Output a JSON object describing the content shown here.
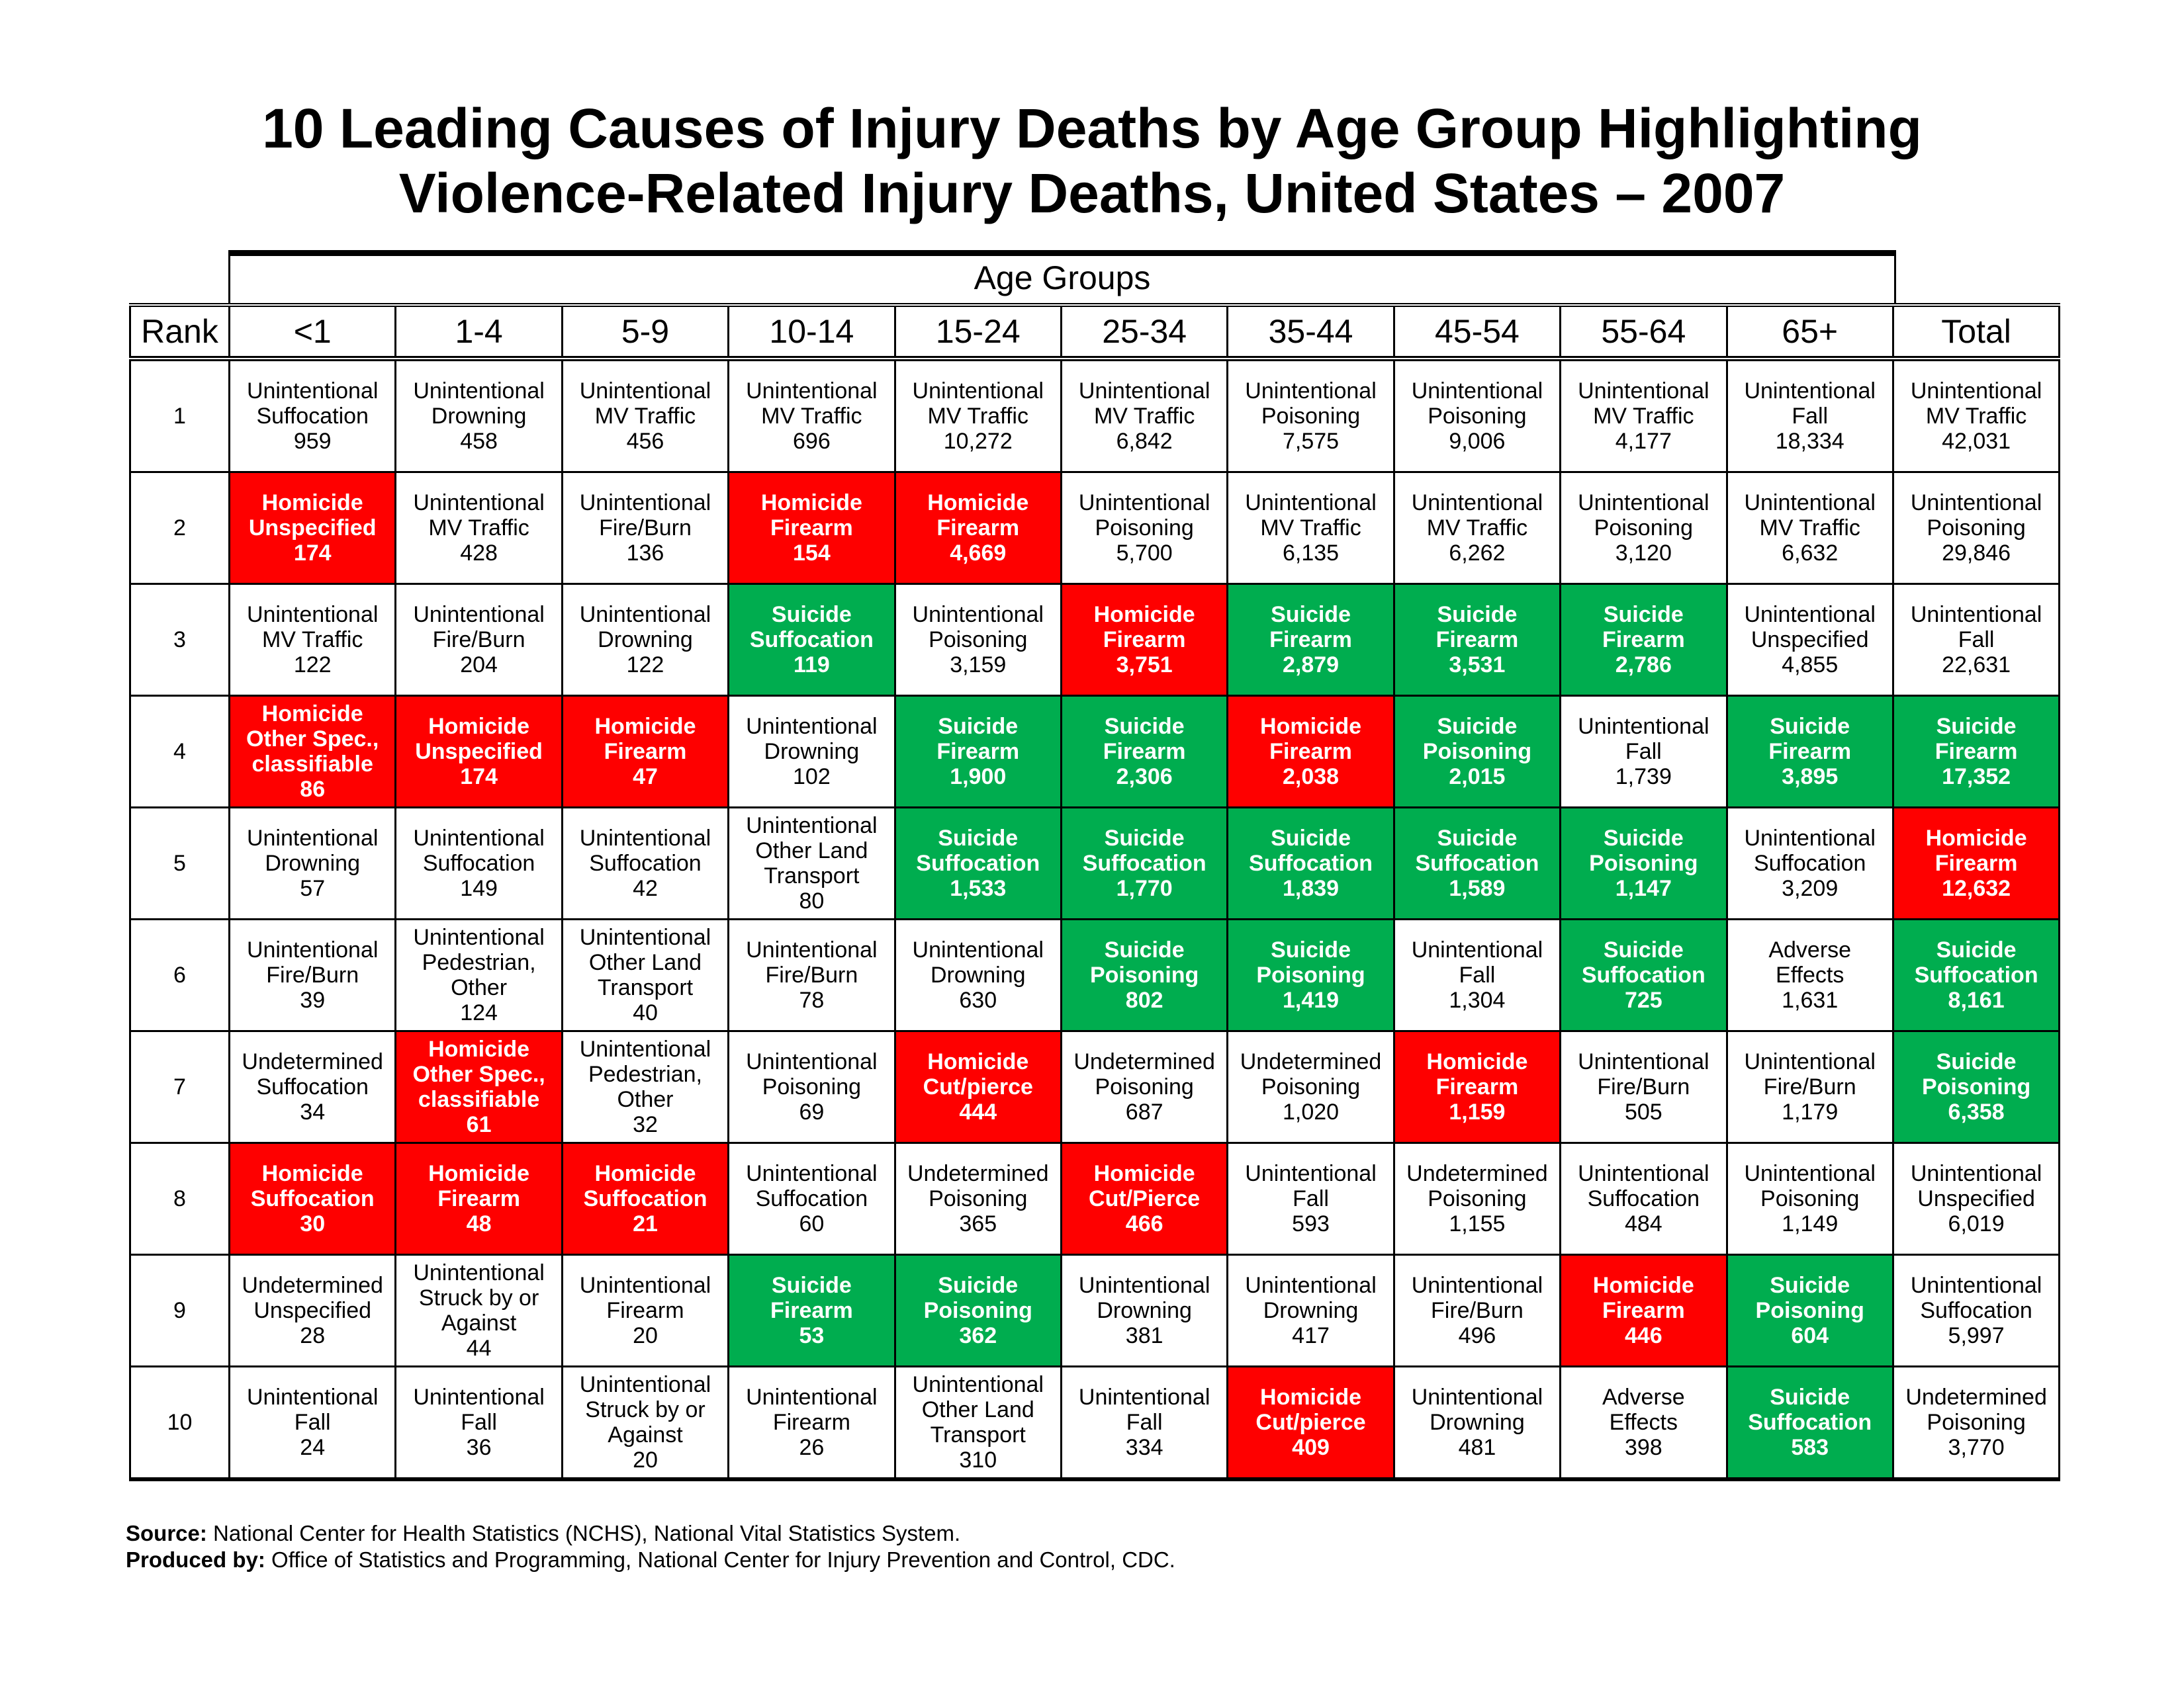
{
  "title_line1": "10 Leading Causes of Injury Deaths by Age Group Highlighting",
  "title_line2": "Violence-Related Injury Deaths, United States – 2007",
  "age_groups_label": "Age Groups",
  "rank_header": "Rank",
  "columns": [
    "<1",
    "1-4",
    "5-9",
    "10-14",
    "15-24",
    "25-34",
    "35-44",
    "45-54",
    "55-64",
    "65+",
    "Total"
  ],
  "colors": {
    "homicide": "#fe0000",
    "suicide": "#00ad4f"
  },
  "rows": [
    {
      "rank": "1",
      "cells": [
        {
          "t": "u",
          "lines": [
            "Unintentional",
            "Suffocation"
          ],
          "v": "959"
        },
        {
          "t": "u",
          "lines": [
            "Unintentional",
            "Drowning"
          ],
          "v": "458"
        },
        {
          "t": "u",
          "lines": [
            "Unintentional",
            "MV Traffic"
          ],
          "v": "456"
        },
        {
          "t": "u",
          "lines": [
            "Unintentional",
            "MV Traffic"
          ],
          "v": "696"
        },
        {
          "t": "u",
          "lines": [
            "Unintentional",
            "MV Traffic"
          ],
          "v": "10,272"
        },
        {
          "t": "u",
          "lines": [
            "Unintentional",
            "MV Traffic"
          ],
          "v": "6,842"
        },
        {
          "t": "u",
          "lines": [
            "Unintentional",
            "Poisoning"
          ],
          "v": "7,575"
        },
        {
          "t": "u",
          "lines": [
            "Unintentional",
            "Poisoning"
          ],
          "v": "9,006"
        },
        {
          "t": "u",
          "lines": [
            "Unintentional",
            "MV Traffic"
          ],
          "v": "4,177"
        },
        {
          "t": "u",
          "lines": [
            "Unintentional",
            "Fall"
          ],
          "v": "18,334"
        },
        {
          "t": "u",
          "lines": [
            "Unintentional",
            "MV Traffic"
          ],
          "v": "42,031"
        }
      ]
    },
    {
      "rank": "2",
      "cells": [
        {
          "t": "h",
          "lines": [
            "Homicide",
            "Unspecified"
          ],
          "v": "174"
        },
        {
          "t": "u",
          "lines": [
            "Unintentional",
            "MV Traffic"
          ],
          "v": "428"
        },
        {
          "t": "u",
          "lines": [
            "Unintentional",
            "Fire/Burn"
          ],
          "v": "136"
        },
        {
          "t": "h",
          "lines": [
            "Homicide",
            "Firearm"
          ],
          "v": "154"
        },
        {
          "t": "h",
          "lines": [
            "Homicide",
            "Firearm"
          ],
          "v": "4,669"
        },
        {
          "t": "u",
          "lines": [
            "Unintentional",
            "Poisoning"
          ],
          "v": "5,700"
        },
        {
          "t": "u",
          "lines": [
            "Unintentional",
            "MV Traffic"
          ],
          "v": "6,135"
        },
        {
          "t": "u",
          "lines": [
            "Unintentional",
            "MV Traffic"
          ],
          "v": "6,262"
        },
        {
          "t": "u",
          "lines": [
            "Unintentional",
            "Poisoning"
          ],
          "v": "3,120"
        },
        {
          "t": "u",
          "lines": [
            "Unintentional",
            "MV Traffic"
          ],
          "v": "6,632"
        },
        {
          "t": "u",
          "lines": [
            "Unintentional",
            "Poisoning"
          ],
          "v": "29,846"
        }
      ]
    },
    {
      "rank": "3",
      "cells": [
        {
          "t": "u",
          "lines": [
            "Unintentional",
            "MV Traffic"
          ],
          "v": "122"
        },
        {
          "t": "u",
          "lines": [
            "Unintentional",
            "Fire/Burn"
          ],
          "v": "204"
        },
        {
          "t": "u",
          "lines": [
            "Unintentional",
            "Drowning"
          ],
          "v": "122"
        },
        {
          "t": "s",
          "lines": [
            "Suicide",
            "Suffocation"
          ],
          "v": "119"
        },
        {
          "t": "u",
          "lines": [
            "Unintentional",
            "Poisoning"
          ],
          "v": "3,159"
        },
        {
          "t": "h",
          "lines": [
            "Homicide",
            "Firearm"
          ],
          "v": "3,751"
        },
        {
          "t": "s",
          "lines": [
            "Suicide",
            "Firearm"
          ],
          "v": "2,879"
        },
        {
          "t": "s",
          "lines": [
            "Suicide",
            "Firearm"
          ],
          "v": "3,531"
        },
        {
          "t": "s",
          "lines": [
            "Suicide",
            "Firearm"
          ],
          "v": "2,786"
        },
        {
          "t": "u",
          "lines": [
            "Unintentional",
            "Unspecified"
          ],
          "v": "4,855"
        },
        {
          "t": "u",
          "lines": [
            "Unintentional",
            "Fall"
          ],
          "v": "22,631"
        }
      ]
    },
    {
      "rank": "4",
      "cells": [
        {
          "t": "h",
          "lines": [
            "Homicide",
            "Other Spec.,",
            "classifiable"
          ],
          "v": "86"
        },
        {
          "t": "h",
          "lines": [
            "Homicide",
            "Unspecified"
          ],
          "v": "174"
        },
        {
          "t": "h",
          "lines": [
            "Homicide",
            "Firearm"
          ],
          "v": "47"
        },
        {
          "t": "u",
          "lines": [
            "Unintentional",
            "Drowning"
          ],
          "v": "102"
        },
        {
          "t": "s",
          "lines": [
            "Suicide",
            "Firearm"
          ],
          "v": "1,900"
        },
        {
          "t": "s",
          "lines": [
            "Suicide",
            "Firearm"
          ],
          "v": "2,306"
        },
        {
          "t": "h",
          "lines": [
            "Homicide",
            "Firearm"
          ],
          "v": "2,038"
        },
        {
          "t": "s",
          "lines": [
            "Suicide",
            "Poisoning"
          ],
          "v": "2,015"
        },
        {
          "t": "u",
          "lines": [
            "Unintentional",
            "Fall"
          ],
          "v": "1,739"
        },
        {
          "t": "s",
          "lines": [
            "Suicide",
            "Firearm"
          ],
          "v": "3,895"
        },
        {
          "t": "s",
          "lines": [
            "Suicide",
            "Firearm"
          ],
          "v": "17,352"
        }
      ]
    },
    {
      "rank": "5",
      "cells": [
        {
          "t": "u",
          "lines": [
            "Unintentional",
            "Drowning"
          ],
          "v": "57"
        },
        {
          "t": "u",
          "lines": [
            "Unintentional",
            "Suffocation"
          ],
          "v": "149"
        },
        {
          "t": "u",
          "lines": [
            "Unintentional",
            "Suffocation"
          ],
          "v": "42"
        },
        {
          "t": "u",
          "lines": [
            "Unintentional",
            "Other Land",
            "Transport"
          ],
          "v": "80"
        },
        {
          "t": "s",
          "lines": [
            "Suicide",
            "Suffocation"
          ],
          "v": "1,533"
        },
        {
          "t": "s",
          "lines": [
            "Suicide",
            "Suffocation"
          ],
          "v": "1,770"
        },
        {
          "t": "s",
          "lines": [
            "Suicide",
            "Suffocation"
          ],
          "v": "1,839"
        },
        {
          "t": "s",
          "lines": [
            "Suicide",
            "Suffocation"
          ],
          "v": "1,589"
        },
        {
          "t": "s",
          "lines": [
            "Suicide",
            "Poisoning"
          ],
          "v": "1,147"
        },
        {
          "t": "u",
          "lines": [
            "Unintentional",
            "Suffocation"
          ],
          "v": "3,209"
        },
        {
          "t": "h",
          "lines": [
            "Homicide",
            "Firearm"
          ],
          "v": "12,632"
        }
      ]
    },
    {
      "rank": "6",
      "cells": [
        {
          "t": "u",
          "lines": [
            "Unintentional",
            "Fire/Burn"
          ],
          "v": "39"
        },
        {
          "t": "u",
          "lines": [
            "Unintentional",
            "Pedestrian,",
            "Other"
          ],
          "v": "124"
        },
        {
          "t": "u",
          "lines": [
            "Unintentional",
            "Other Land",
            "Transport"
          ],
          "v": "40"
        },
        {
          "t": "u",
          "lines": [
            "Unintentional",
            "Fire/Burn"
          ],
          "v": "78"
        },
        {
          "t": "u",
          "lines": [
            "Unintentional",
            "Drowning"
          ],
          "v": "630"
        },
        {
          "t": "s",
          "lines": [
            "Suicide",
            "Poisoning"
          ],
          "v": "802"
        },
        {
          "t": "s",
          "lines": [
            "Suicide",
            "Poisoning"
          ],
          "v": "1,419"
        },
        {
          "t": "u",
          "lines": [
            "Unintentional",
            "Fall"
          ],
          "v": "1,304"
        },
        {
          "t": "s",
          "lines": [
            "Suicide",
            "Suffocation"
          ],
          "v": "725"
        },
        {
          "t": "u",
          "lines": [
            "Adverse",
            "Effects"
          ],
          "v": "1,631"
        },
        {
          "t": "s",
          "lines": [
            "Suicide",
            "Suffocation"
          ],
          "v": "8,161"
        }
      ]
    },
    {
      "rank": "7",
      "cells": [
        {
          "t": "u",
          "lines": [
            "Undetermined",
            "Suffocation"
          ],
          "v": "34"
        },
        {
          "t": "h",
          "lines": [
            "Homicide",
            "Other Spec.,",
            "classifiable"
          ],
          "v": "61"
        },
        {
          "t": "u",
          "lines": [
            "Unintentional",
            "Pedestrian,",
            "Other"
          ],
          "v": "32"
        },
        {
          "t": "u",
          "lines": [
            "Unintentional",
            "Poisoning"
          ],
          "v": "69"
        },
        {
          "t": "h",
          "lines": [
            "Homicide",
            "Cut/pierce"
          ],
          "v": "444"
        },
        {
          "t": "u",
          "lines": [
            "Undetermined",
            "Poisoning"
          ],
          "v": "687"
        },
        {
          "t": "u",
          "lines": [
            "Undetermined",
            "Poisoning"
          ],
          "v": "1,020"
        },
        {
          "t": "h",
          "lines": [
            "Homicide",
            "Firearm"
          ],
          "v": "1,159"
        },
        {
          "t": "u",
          "lines": [
            "Unintentional",
            "Fire/Burn"
          ],
          "v": "505"
        },
        {
          "t": "u",
          "lines": [
            "Unintentional",
            "Fire/Burn"
          ],
          "v": "1,179"
        },
        {
          "t": "s",
          "lines": [
            "Suicide",
            "Poisoning"
          ],
          "v": "6,358"
        }
      ]
    },
    {
      "rank": "8",
      "cells": [
        {
          "t": "h",
          "lines": [
            "Homicide",
            "Suffocation"
          ],
          "v": "30"
        },
        {
          "t": "h",
          "lines": [
            "Homicide",
            "Firearm"
          ],
          "v": "48"
        },
        {
          "t": "h",
          "lines": [
            "Homicide",
            "Suffocation"
          ],
          "v": "21"
        },
        {
          "t": "u",
          "lines": [
            "Unintentional",
            "Suffocation"
          ],
          "v": "60"
        },
        {
          "t": "u",
          "lines": [
            "Undetermined",
            "Poisoning"
          ],
          "v": "365"
        },
        {
          "t": "h",
          "lines": [
            "Homicide",
            "Cut/Pierce"
          ],
          "v": "466"
        },
        {
          "t": "u",
          "lines": [
            "Unintentional",
            "Fall"
          ],
          "v": "593"
        },
        {
          "t": "u",
          "lines": [
            "Undetermined",
            "Poisoning"
          ],
          "v": "1,155"
        },
        {
          "t": "u",
          "lines": [
            "Unintentional",
            "Suffocation"
          ],
          "v": "484"
        },
        {
          "t": "u",
          "lines": [
            "Unintentional",
            "Poisoning"
          ],
          "v": "1,149"
        },
        {
          "t": "u",
          "lines": [
            "Unintentional",
            "Unspecified"
          ],
          "v": "6,019"
        }
      ]
    },
    {
      "rank": "9",
      "cells": [
        {
          "t": "u",
          "lines": [
            "Undetermined",
            "Unspecified"
          ],
          "v": "28"
        },
        {
          "t": "u",
          "lines": [
            "Unintentional",
            "Struck by or",
            "Against"
          ],
          "v": "44"
        },
        {
          "t": "u",
          "lines": [
            "Unintentional",
            "Firearm"
          ],
          "v": "20"
        },
        {
          "t": "s",
          "lines": [
            "Suicide",
            "Firearm"
          ],
          "v": "53"
        },
        {
          "t": "s",
          "lines": [
            "Suicide",
            "Poisoning"
          ],
          "v": "362"
        },
        {
          "t": "u",
          "lines": [
            "Unintentional",
            "Drowning"
          ],
          "v": "381"
        },
        {
          "t": "u",
          "lines": [
            "Unintentional",
            "Drowning"
          ],
          "v": "417"
        },
        {
          "t": "u",
          "lines": [
            "Unintentional",
            "Fire/Burn"
          ],
          "v": "496"
        },
        {
          "t": "h",
          "lines": [
            "Homicide",
            "Firearm"
          ],
          "v": "446"
        },
        {
          "t": "s",
          "lines": [
            "Suicide",
            "Poisoning"
          ],
          "v": "604"
        },
        {
          "t": "u",
          "lines": [
            "Unintentional",
            "Suffocation"
          ],
          "v": "5,997"
        }
      ]
    },
    {
      "rank": "10",
      "cells": [
        {
          "t": "u",
          "lines": [
            "Unintentional",
            "Fall"
          ],
          "v": "24"
        },
        {
          "t": "u",
          "lines": [
            "Unintentional",
            "Fall"
          ],
          "v": "36"
        },
        {
          "t": "u",
          "lines": [
            "Unintentional",
            "Struck by or",
            "Against"
          ],
          "v": "20"
        },
        {
          "t": "u",
          "lines": [
            "Unintentional",
            "Firearm"
          ],
          "v": "26"
        },
        {
          "t": "u",
          "lines": [
            "Unintentional",
            "Other Land",
            "Transport"
          ],
          "v": "310"
        },
        {
          "t": "u",
          "lines": [
            "Unintentional",
            "Fall"
          ],
          "v": "334"
        },
        {
          "t": "h",
          "lines": [
            "Homicide",
            "Cut/pierce"
          ],
          "v": "409"
        },
        {
          "t": "u",
          "lines": [
            "Unintentional",
            "Drowning"
          ],
          "v": "481"
        },
        {
          "t": "u",
          "lines": [
            "Adverse",
            "Effects"
          ],
          "v": "398"
        },
        {
          "t": "s",
          "lines": [
            "Suicide",
            "Suffocation"
          ],
          "v": "583"
        },
        {
          "t": "u",
          "lines": [
            "Undetermined",
            "Poisoning"
          ],
          "v": "3,770"
        }
      ]
    }
  ],
  "footer": {
    "source_label": "Source:",
    "source_text": " National Center for Health Statistics (NCHS), National Vital Statistics System.",
    "produced_label": "Produced by:",
    "produced_text": " Office of Statistics and Programming, National Center for Injury Prevention and Control, CDC."
  }
}
